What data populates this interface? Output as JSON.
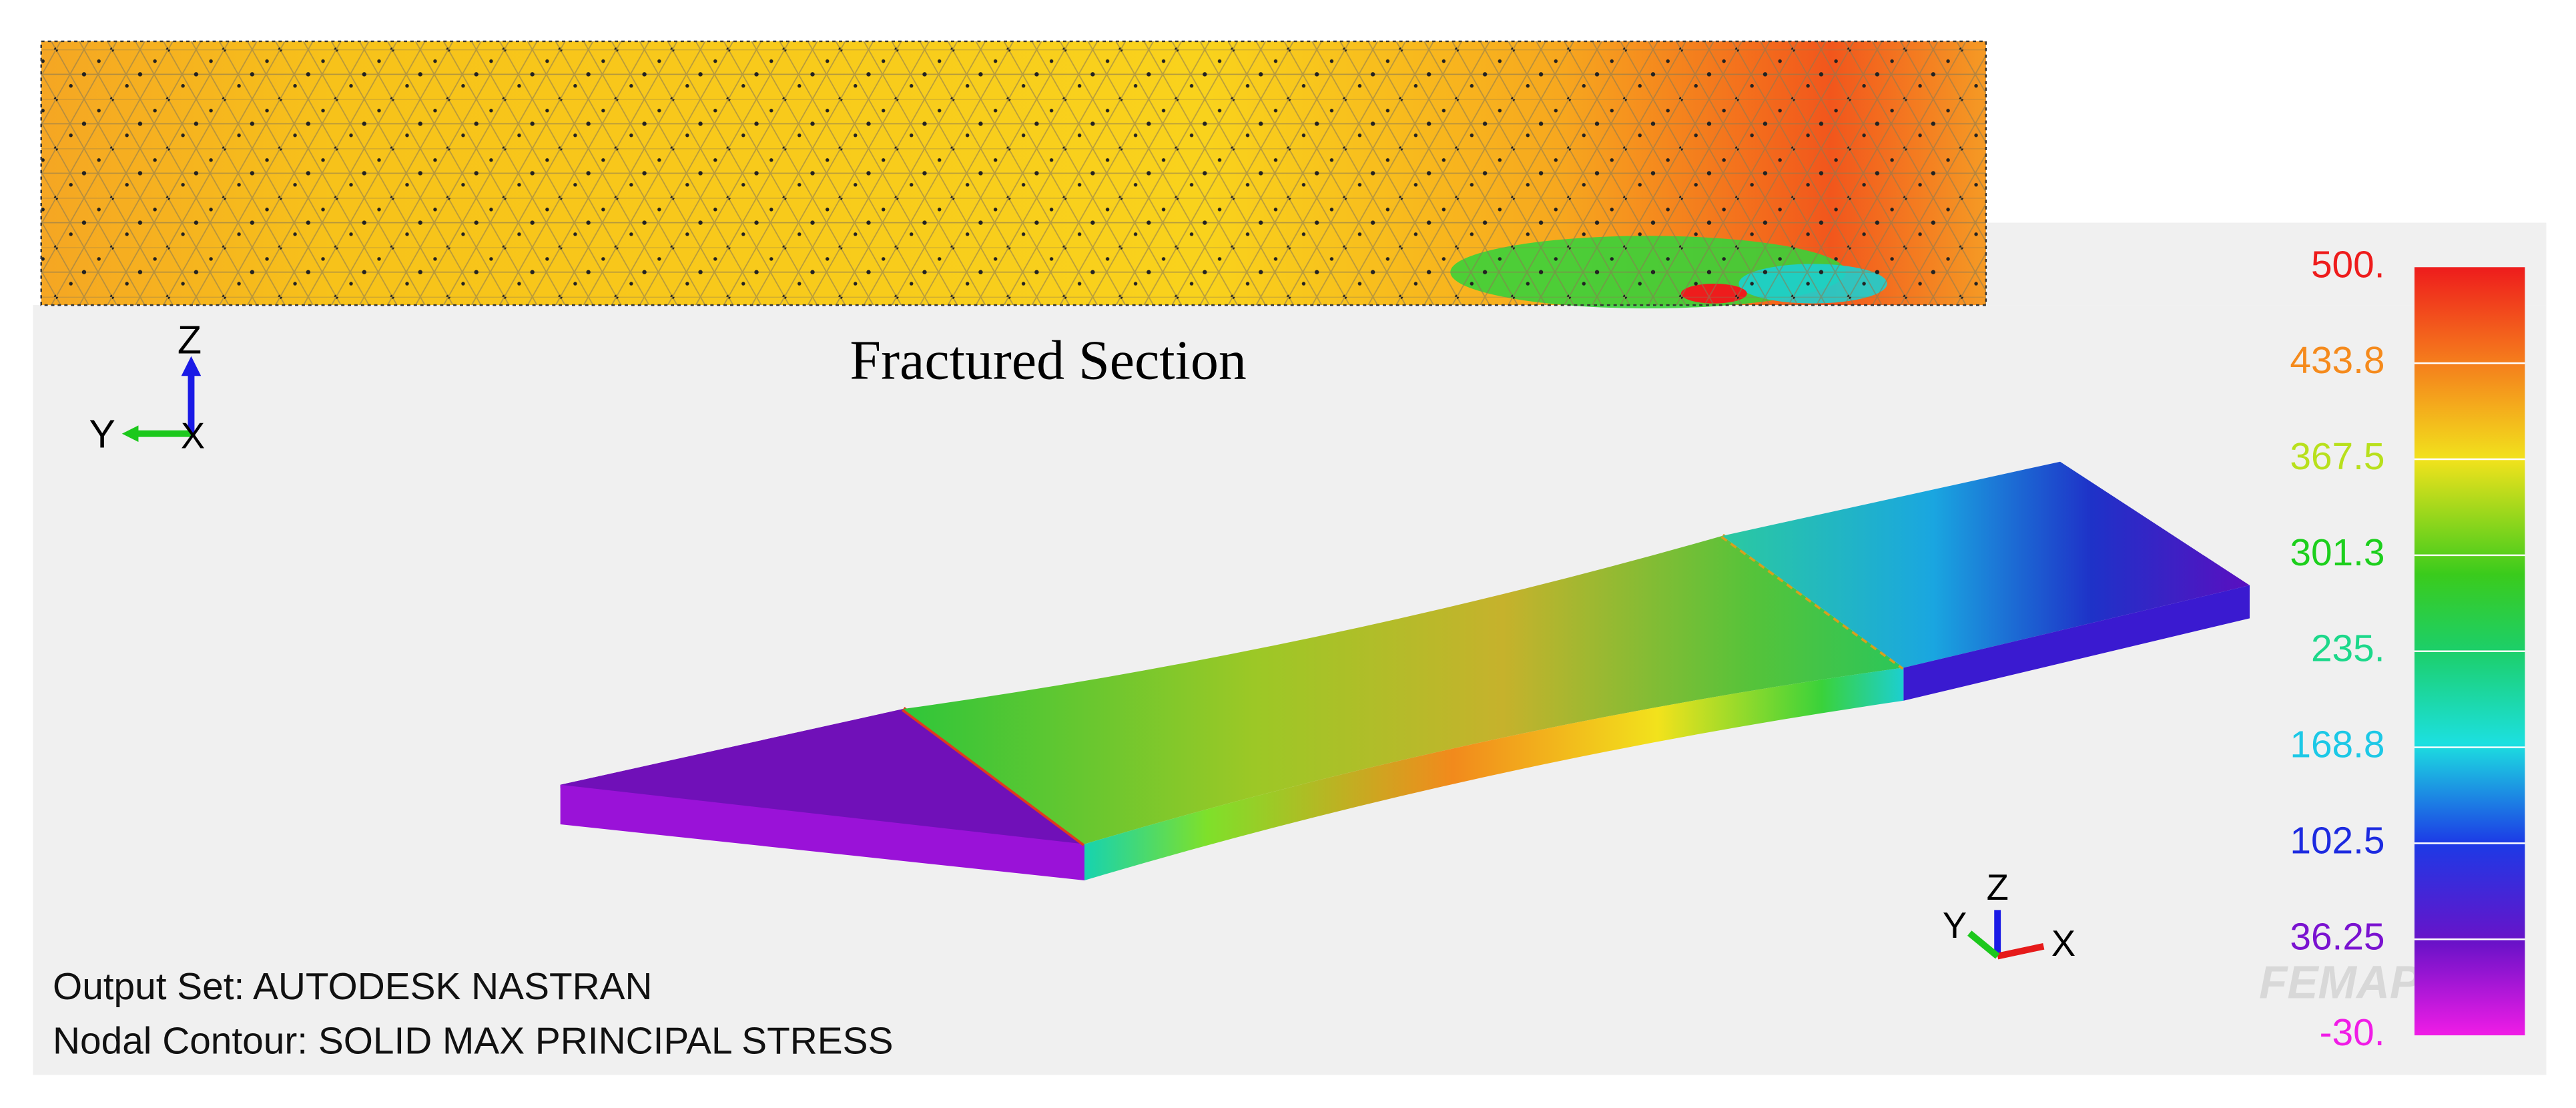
{
  "fractured_section": {
    "title": "Fractured Section",
    "triad": {
      "z": "Z",
      "y": "Y",
      "x": "X"
    }
  },
  "model_view": {
    "triad": {
      "z": "Z",
      "y": "Y",
      "x": "X"
    },
    "output_set": "Output Set: AUTODESK NASTRAN",
    "nodal_contour": "Nodal Contour: SOLID MAX PRINCIPAL STRESS",
    "watermark": "FEMAP®"
  },
  "legend": {
    "labels": [
      "500.",
      "433.8",
      "367.5",
      "301.3",
      "235.",
      "168.8",
      "102.5",
      "36.25",
      "-30."
    ]
  }
}
